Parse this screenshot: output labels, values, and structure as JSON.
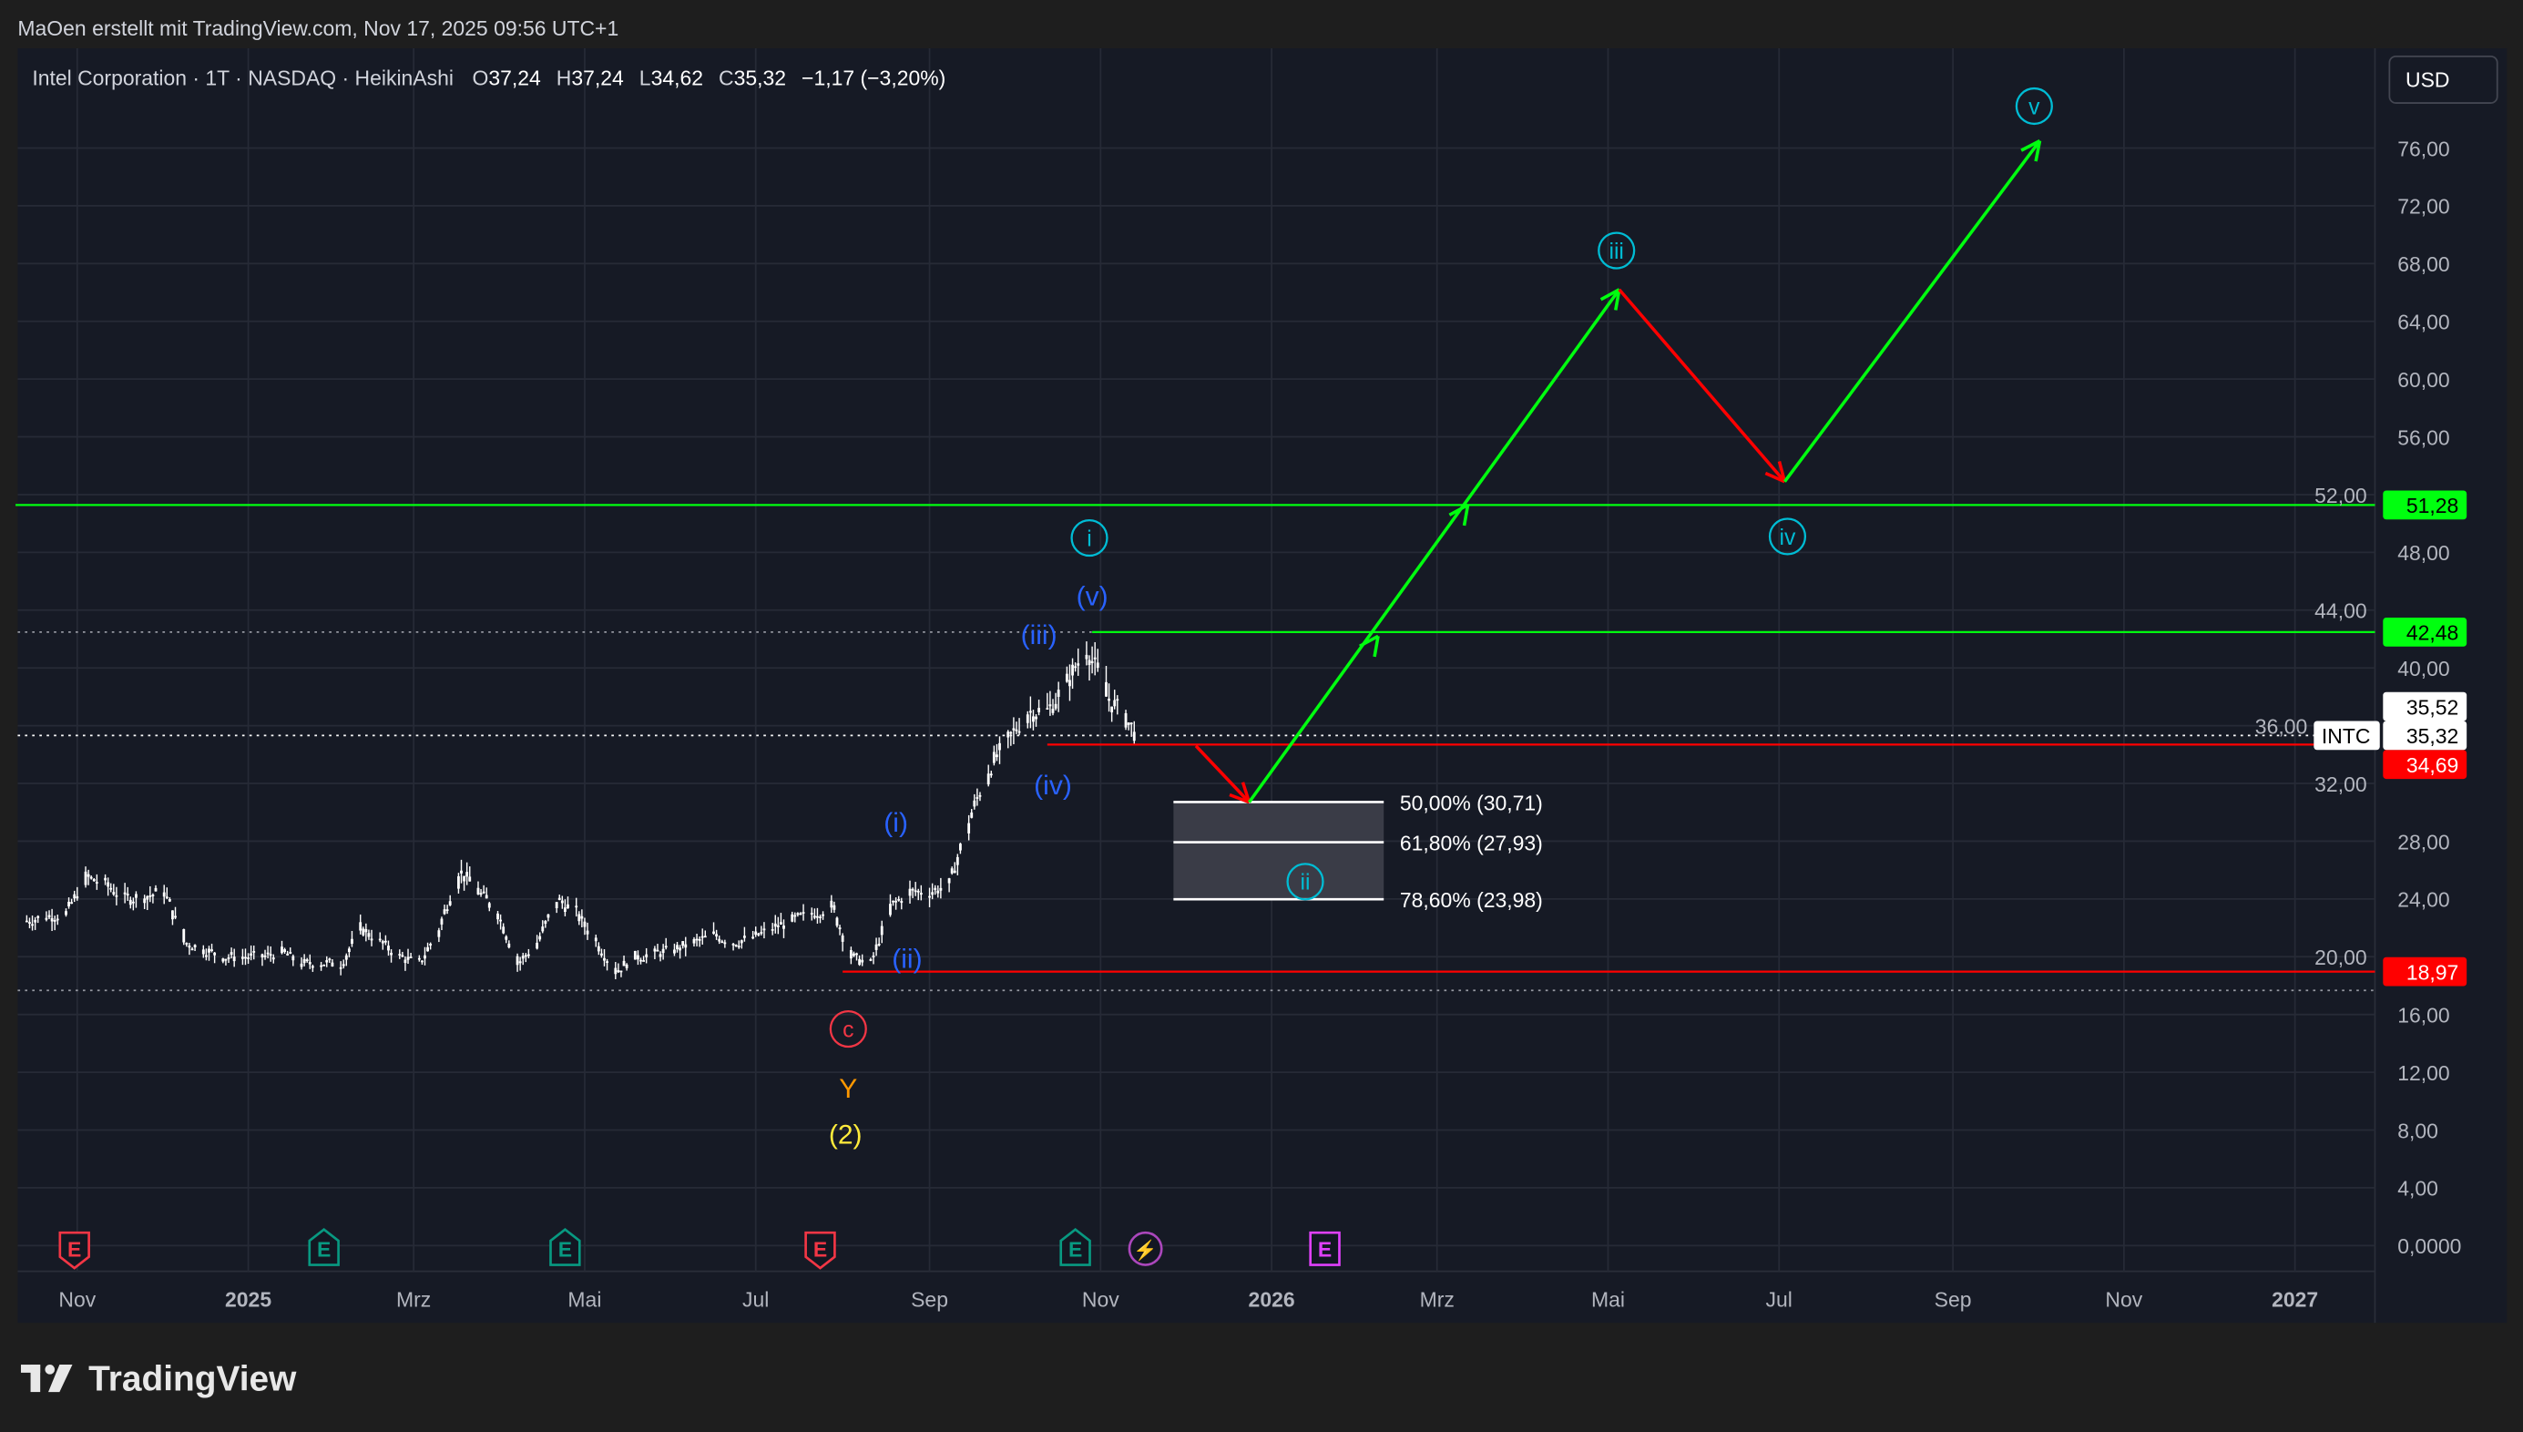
{
  "header": {
    "attribution": "MaOen erstellt mit TradingView.com, Nov 17, 2025 09:56 UTC+1"
  },
  "legend": {
    "symbol": "Intel Corporation · 1T · NASDAQ · HeikinAshi",
    "o_label": "O",
    "o": "37,24",
    "h_label": "H",
    "h": "37,24",
    "l_label": "L",
    "l": "34,62",
    "c_label": "C",
    "c": "35,32",
    "change": "−1,17 (−3,20%)"
  },
  "currency_button": "USD",
  "logo_text": "TradingView",
  "colors": {
    "background": "#161a25",
    "page": "#1e1e1e",
    "green": "#00ff0f",
    "red": "#ff0000",
    "wave_blue": "#2962ff",
    "wave_cyan": "#00bcd4",
    "wave_c": "#f23645",
    "wave_y": "#ff9800",
    "wave_2": "#ffeb3b"
  },
  "chart_data": {
    "type": "candlestick",
    "style": "HeikinAshi",
    "ylim": [
      0,
      78
    ],
    "y_ticks": [
      "0,0000",
      "4,00",
      "8,00",
      "12,00",
      "16,00",
      "20,00",
      "24,00",
      "28,00",
      "32,00",
      "36,00",
      "40,00",
      "44,00",
      "48,00",
      "52,00",
      "56,00",
      "60,00",
      "64,00",
      "68,00",
      "72,00",
      "76,00"
    ],
    "x_ticks": [
      {
        "label": "Nov",
        "date": "2024-11-01",
        "bold": false
      },
      {
        "label": "2025",
        "date": "2025-01-01",
        "bold": true
      },
      {
        "label": "Mrz",
        "date": "2025-03-01",
        "bold": false
      },
      {
        "label": "Mai",
        "date": "2025-05-01",
        "bold": false
      },
      {
        "label": "Jul",
        "date": "2025-07-01",
        "bold": false
      },
      {
        "label": "Sep",
        "date": "2025-09-01",
        "bold": false
      },
      {
        "label": "Nov",
        "date": "2025-11-01",
        "bold": false
      },
      {
        "label": "2026",
        "date": "2026-01-01",
        "bold": true
      },
      {
        "label": "Mrz",
        "date": "2026-03-01",
        "bold": false
      },
      {
        "label": "Mai",
        "date": "2026-05-01",
        "bold": false
      },
      {
        "label": "Jul",
        "date": "2026-07-01",
        "bold": false
      },
      {
        "label": "Sep",
        "date": "2026-09-01",
        "bold": false
      },
      {
        "label": "Nov",
        "date": "2026-11-01",
        "bold": false
      },
      {
        "label": "2027",
        "date": "2027-01-01",
        "bold": true
      }
    ],
    "weekly_closes": [
      [
        "2024-10-14",
        22.5
      ],
      [
        "2024-10-21",
        22.8
      ],
      [
        "2024-10-28",
        23
      ],
      [
        "2024-11-04",
        25.5
      ],
      [
        "2024-11-11",
        25
      ],
      [
        "2024-11-18",
        24
      ],
      [
        "2024-11-25",
        24.2
      ],
      [
        "2024-12-02",
        24.5
      ],
      [
        "2024-12-09",
        21
      ],
      [
        "2024-12-16",
        20.5
      ],
      [
        "2024-12-23",
        20
      ],
      [
        "2024-12-30",
        20
      ],
      [
        "2025-01-06",
        20
      ],
      [
        "2025-01-13",
        20.3
      ],
      [
        "2025-01-20",
        19.5
      ],
      [
        "2025-01-27",
        19.6
      ],
      [
        "2025-02-03",
        19.5
      ],
      [
        "2025-02-10",
        22
      ],
      [
        "2025-02-17",
        21
      ],
      [
        "2025-02-24",
        20
      ],
      [
        "2025-03-03",
        19.5
      ],
      [
        "2025-03-10",
        22
      ],
      [
        "2025-03-17",
        26
      ],
      [
        "2025-03-24",
        24.5
      ],
      [
        "2025-03-31",
        23
      ],
      [
        "2025-04-07",
        19.5
      ],
      [
        "2025-04-14",
        21
      ],
      [
        "2025-04-21",
        24
      ],
      [
        "2025-04-28",
        23
      ],
      [
        "2025-05-05",
        21
      ],
      [
        "2025-05-12",
        19
      ],
      [
        "2025-05-19",
        20
      ],
      [
        "2025-05-26",
        20.2
      ],
      [
        "2025-06-02",
        20.5
      ],
      [
        "2025-06-09",
        21
      ],
      [
        "2025-06-16",
        21.5
      ],
      [
        "2025-06-23",
        21
      ],
      [
        "2025-06-30",
        21.3
      ],
      [
        "2025-07-07",
        22
      ],
      [
        "2025-07-14",
        22.5
      ],
      [
        "2025-07-21",
        23
      ],
      [
        "2025-07-28",
        23.5
      ],
      [
        "2025-08-04",
        20
      ],
      [
        "2025-08-11",
        19.5
      ],
      [
        "2025-08-18",
        23.5
      ],
      [
        "2025-08-25",
        24.5
      ],
      [
        "2025-09-01",
        24.5
      ],
      [
        "2025-09-08",
        25
      ],
      [
        "2025-09-15",
        29.5
      ],
      [
        "2025-09-22",
        33
      ],
      [
        "2025-09-29",
        35
      ],
      [
        "2025-10-06",
        37
      ],
      [
        "2025-10-13",
        37
      ],
      [
        "2025-10-20",
        39
      ],
      [
        "2025-10-27",
        41.5
      ],
      [
        "2025-11-03",
        38
      ],
      [
        "2025-11-10",
        36.5
      ],
      [
        "2025-11-14",
        35.32
      ]
    ],
    "horizontal_lines": [
      {
        "price": 51.28,
        "label": "51,28",
        "color": "#00ff0f",
        "from": "2024-10-10"
      },
      {
        "price": 42.48,
        "label": "42,48",
        "color": "#00ff0f",
        "from": "2025-10-29"
      },
      {
        "price": 34.69,
        "label": "34,69",
        "color": "#ff0000",
        "from": "2025-10-13"
      },
      {
        "price": 18.97,
        "label": "18,97",
        "color": "#ff0000",
        "from": "2025-08-01"
      }
    ],
    "price_labels": [
      {
        "price": 35.52,
        "label": "35,52"
      },
      {
        "price": 35.32,
        "label": "35,32",
        "symbol": "INTC"
      }
    ],
    "dotted_lines": [
      {
        "price": 42.48,
        "to": "2025-10-29"
      },
      {
        "price": 35.32
      },
      {
        "price": 17.67
      }
    ],
    "fib_levels": [
      {
        "price": 30.71,
        "label": "50,00% (30,71)"
      },
      {
        "price": 27.93,
        "label": "61,80% (27,93)"
      },
      {
        "price": 23.98,
        "label": "78,60% (23,98)"
      }
    ],
    "fib_range": [
      "2025-11-27",
      "2026-02-10"
    ],
    "projection": [
      {
        "from": [
          "2025-12-05",
          34.6
        ],
        "to": [
          "2025-12-24",
          30.7
        ],
        "color": "#ff0000"
      },
      {
        "from": [
          "2025-12-24",
          30.7
        ],
        "to": [
          "2026-05-05",
          66.2
        ],
        "color": "#00ff0f"
      },
      {
        "from": [
          "2026-05-05",
          66.2
        ],
        "to": [
          "2026-07-03",
          52.9
        ],
        "color": "#ff0000"
      },
      {
        "from": [
          "2026-07-03",
          52.9
        ],
        "to": [
          "2026-10-02",
          76.5
        ],
        "color": "#00ff0f"
      }
    ],
    "arrow_marks": [
      [
        "2026-02-08",
        42.2
      ],
      [
        "2026-03-12",
        51.28
      ]
    ],
    "wave_labels": [
      {
        "text": "(v)",
        "date": "2025-10-29",
        "price": 44.9,
        "color": "#2962ff",
        "circle": false
      },
      {
        "text": "i",
        "date": "2025-10-28",
        "price": 49.0,
        "color": "#00bcd4",
        "circle": true
      },
      {
        "text": "(iii)",
        "date": "2025-10-10",
        "price": 42.2,
        "color": "#2962ff",
        "circle": false
      },
      {
        "text": "(iv)",
        "date": "2025-10-15",
        "price": 31.8,
        "color": "#2962ff",
        "circle": false
      },
      {
        "text": "(i)",
        "date": "2025-08-20",
        "price": 29.2,
        "color": "#2962ff",
        "circle": false
      },
      {
        "text": "(ii)",
        "date": "2025-08-24",
        "price": 19.8,
        "color": "#2962ff",
        "circle": false
      },
      {
        "text": "c",
        "date": "2025-08-03",
        "price": 15.0,
        "color": "#f23645",
        "circle": true
      },
      {
        "text": "Y",
        "date": "2025-08-03",
        "price": 10.8,
        "color": "#ff9800",
        "circle": false
      },
      {
        "text": "(2)",
        "date": "2025-08-02",
        "price": 7.6,
        "color": "#ffeb3b",
        "circle": false
      },
      {
        "text": "ii",
        "date": "2025-12-44",
        "price": 25.2,
        "color": "#00bcd4",
        "circle": true
      },
      {
        "text": "iii",
        "date": "2026-05-04",
        "price": 68.9,
        "color": "#00bcd4",
        "circle": true
      },
      {
        "text": "iv",
        "date": "2026-07-04",
        "price": 49.1,
        "color": "#00bcd4",
        "circle": true
      },
      {
        "text": "v",
        "date": "2026-09-30",
        "price": 78.9,
        "color": "#00bcd4",
        "circle": true
      }
    ],
    "events": [
      {
        "type": "earnings",
        "date": "2024-10-31",
        "color": "#f23645",
        "dir": "down",
        "label": "E"
      },
      {
        "type": "earnings",
        "date": "2025-01-28",
        "color": "#089981",
        "dir": "up",
        "label": "E"
      },
      {
        "type": "earnings",
        "date": "2025-04-24",
        "color": "#089981",
        "dir": "up",
        "label": "E"
      },
      {
        "type": "earnings",
        "date": "2025-07-24",
        "color": "#f23645",
        "dir": "down",
        "label": "E"
      },
      {
        "type": "earnings",
        "date": "2025-10-23",
        "color": "#089981",
        "dir": "up",
        "label": "E"
      },
      {
        "type": "dividend-lightning",
        "date": "2025-11-17",
        "color": "#ab47bc",
        "label": "⚡"
      },
      {
        "type": "earnings-estimated",
        "date": "2026-01-20",
        "color": "#e040fb",
        "label": "E"
      }
    ]
  }
}
